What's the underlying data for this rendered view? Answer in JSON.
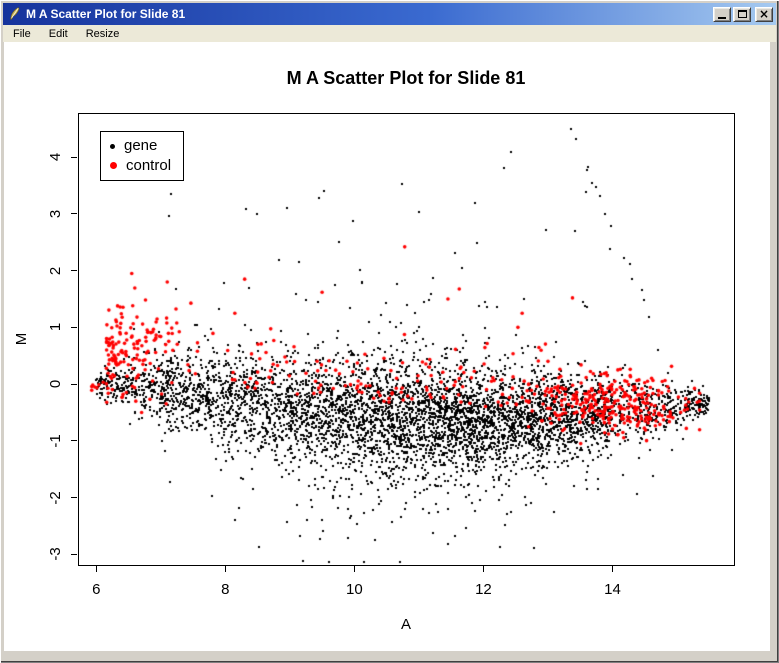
{
  "window": {
    "title": "M A Scatter Plot for Slide 81",
    "icon": "feather-icon",
    "menu": [
      "File",
      "Edit",
      "Resize"
    ],
    "controls": [
      {
        "name": "minimize"
      },
      {
        "name": "maximize"
      },
      {
        "name": "close",
        "glyph": "×"
      }
    ]
  },
  "colors": {
    "titlebar_gradient_left": "#16339C",
    "titlebar_gradient_right": "#A6CAF0",
    "frame": "#D4D0C8",
    "menu_bg": "#ECE9D8",
    "client_bg": "#FFFFFF",
    "gene_point": "#000000",
    "control_point": "#FF0000"
  },
  "chart_data": {
    "type": "scatter",
    "title": "M A Scatter Plot for Slide 81",
    "xlabel": "A",
    "ylabel": "M",
    "xlim": [
      5.717,
      15.883
    ],
    "ylim": [
      -3.19,
      4.78
    ],
    "x_ticks": [
      6,
      8,
      10,
      12,
      14
    ],
    "y_ticks": [
      -3,
      -2,
      -1,
      0,
      1,
      2,
      3,
      4
    ],
    "grid": false,
    "seed": 9,
    "legend": {
      "position": "top-left",
      "entries": [
        {
          "label": "gene",
          "color": "#000000"
        },
        {
          "label": "control",
          "color": "#FF0000"
        }
      ]
    },
    "band_profile": [
      [
        6.0,
        0.02,
        0.1
      ],
      [
        6.5,
        -0.02,
        0.18
      ],
      [
        7.0,
        -0.1,
        0.3
      ],
      [
        8.0,
        -0.3,
        0.42
      ],
      [
        9.0,
        -0.45,
        0.48
      ],
      [
        10.0,
        -0.55,
        0.5
      ],
      [
        11.0,
        -0.6,
        0.5
      ],
      [
        12.0,
        -0.65,
        0.45
      ],
      [
        13.0,
        -0.6,
        0.4
      ],
      [
        14.0,
        -0.5,
        0.3
      ],
      [
        15.0,
        -0.4,
        0.2
      ],
      [
        15.5,
        -0.3,
        0.12
      ]
    ],
    "series": [
      {
        "name": "gene",
        "color": "#000000",
        "marker": "dot",
        "marker_px": 2,
        "generators": [
          {
            "kind": "band",
            "n": 5200,
            "bins": [
              [
                6,
                7,
                0.05
              ],
              [
                7,
                8,
                0.08
              ],
              [
                8,
                9,
                0.1
              ],
              [
                9,
                10,
                0.13
              ],
              [
                10,
                11,
                0.15
              ],
              [
                11,
                12,
                0.16
              ],
              [
                12,
                13,
                0.15
              ],
              [
                13,
                14,
                0.11
              ],
              [
                14,
                15,
                0.05
              ],
              [
                15,
                15.5,
                0.02
              ]
            ],
            "tail_frac": 0.1,
            "tail_mult": 2.1
          },
          {
            "kind": "uniform",
            "n": 42,
            "a": [
              6.8,
              13.8
            ],
            "m": [
              1.35,
              4.1
            ],
            "m_pow": 2.0
          },
          {
            "kind": "streak",
            "n": 15,
            "from": [
              13.38,
              4.45
            ],
            "to": [
              14.55,
              1.15
            ],
            "jitter": 0.07
          },
          {
            "kind": "lower",
            "n": 30,
            "a_mean": 10.6,
            "a_sd": 1.4,
            "a_clip": [
              7.6,
              13.6
            ],
            "m": [
              -1.55,
              -2.9
            ],
            "m_pow": 1.6
          }
        ]
      },
      {
        "name": "control",
        "color": "#FF0000",
        "marker": "dot",
        "marker_px": 3.6,
        "generators": [
          {
            "kind": "cluster",
            "n": 10,
            "a_mean": 6.05,
            "a_sd": 0.1,
            "a_clip": [
              5.93,
              6.35
            ],
            "m_mean": -0.05,
            "m_sd": 0.12,
            "m_clip": [
              -0.35,
              0.25
            ]
          },
          {
            "kind": "halfleft",
            "n": 150,
            "a_origin": 6.15,
            "a_scale": 0.62,
            "a_max": 8.6,
            "m_mean": 0.6,
            "m_sd": 0.45,
            "m_clip": [
              -0.5,
              1.75
            ]
          },
          {
            "kind": "midtop",
            "n": 150,
            "a": [
              8.0,
              13.3
            ],
            "offset": 0.25,
            "spread": 0.5,
            "m_max": 2.0
          },
          {
            "kind": "cluster",
            "n": 290,
            "a_mean": 14.05,
            "a_sd": 0.6,
            "a_clip": [
              12.7,
              15.35
            ],
            "m_mean": -0.35,
            "m_sd": 0.28,
            "m_clip": [
              -1.2,
              0.5
            ]
          },
          {
            "kind": "list",
            "points": [
              [
                10.78,
                2.42
              ],
              [
                13.38,
                1.52
              ],
              [
                11.45,
                1.5
              ],
              [
                9.5,
                1.62
              ],
              [
                8.3,
                1.85
              ],
              [
                12.6,
                1.25
              ],
              [
                6.55,
                1.95
              ],
              [
                7.1,
                1.8
              ]
            ]
          }
        ]
      }
    ]
  }
}
